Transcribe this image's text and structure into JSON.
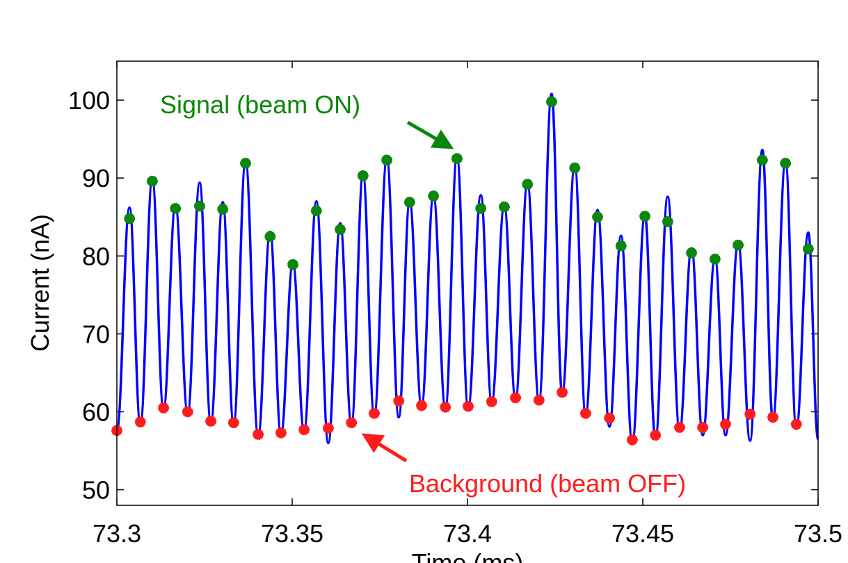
{
  "chart_data": {
    "type": "line",
    "xlabel": "Time (ms)",
    "ylabel": "Current (nA)",
    "xlim": [
      73.3,
      73.5
    ],
    "xticks": [
      73.3,
      73.35,
      73.4,
      73.45,
      73.5
    ],
    "ylim": [
      48,
      105
    ],
    "yticks": [
      50,
      60,
      70,
      80,
      90,
      100
    ],
    "series": [
      {
        "type": "line",
        "color": "#0000ff",
        "x": [
          73.3,
          73.3036,
          73.3067,
          73.3101,
          73.3133,
          73.3167,
          73.3202,
          73.3236,
          73.3268,
          73.3302,
          73.3333,
          73.3367,
          73.3403,
          73.3437,
          73.3468,
          73.3502,
          73.3534,
          73.3569,
          73.3603,
          73.3637,
          73.3669,
          73.3702,
          73.3734,
          73.377,
          73.3804,
          73.3835,
          73.3869,
          73.3903,
          73.3937,
          73.397,
          73.4002,
          73.4038,
          73.4069,
          73.4105,
          73.4137,
          73.4171,
          73.4204,
          73.424,
          73.427,
          73.4306,
          73.4337,
          73.4371,
          73.4405,
          73.4438,
          73.447,
          73.4506,
          73.4536,
          73.4571,
          73.4605,
          73.4639,
          73.4671,
          73.4706,
          73.4736,
          73.4772,
          73.4806,
          73.4841,
          73.4871,
          73.4907,
          73.4938,
          73.4972,
          73.5
        ],
        "values": [
          57.6,
          86.2,
          58.4,
          89.9,
          60.3,
          86.5,
          59.8,
          89.4,
          58.6,
          86.9,
          58.4,
          92.2,
          56.9,
          83.1,
          57.1,
          79.1,
          57.5,
          87.0,
          56.0,
          84.2,
          58.4,
          90.5,
          59.5,
          92.5,
          59.3,
          87.0,
          60.7,
          87.8,
          60.4,
          92.8,
          60.5,
          87.8,
          61.2,
          86.5,
          61.6,
          89.4,
          61.4,
          100.8,
          62.3,
          91.6,
          59.6,
          85.9,
          58.1,
          82.6,
          56.0,
          85.3,
          56.5,
          87.6,
          57.6,
          81.0,
          57.0,
          79.8,
          57.0,
          81.7,
          56.3,
          93.6,
          58.9,
          92.2,
          57.8,
          83.0,
          56.5
        ]
      },
      {
        "type": "scatter",
        "color": "#0c860c",
        "x": [
          73.3036,
          73.3101,
          73.3167,
          73.3236,
          73.3302,
          73.3367,
          73.3437,
          73.3502,
          73.3569,
          73.3637,
          73.3702,
          73.377,
          73.3835,
          73.3903,
          73.397,
          73.4038,
          73.4105,
          73.4171,
          73.424,
          73.4306,
          73.4371,
          73.4438,
          73.4506,
          73.4571,
          73.4639,
          73.4706,
          73.4772,
          73.4841,
          73.4907,
          73.4972
        ],
        "values": [
          84.8,
          89.6,
          86.1,
          86.4,
          86.0,
          91.9,
          82.5,
          78.9,
          85.8,
          83.4,
          90.3,
          92.3,
          86.9,
          87.7,
          92.5,
          86.1,
          86.3,
          89.2,
          99.8,
          91.3,
          85.0,
          81.3,
          85.1,
          84.4,
          80.4,
          79.6,
          81.4,
          92.3,
          91.9,
          80.9
        ]
      },
      {
        "type": "scatter",
        "color": "#ff1c1c",
        "x": [
          73.3,
          73.3067,
          73.3133,
          73.3202,
          73.3268,
          73.3333,
          73.3403,
          73.3468,
          73.3534,
          73.3603,
          73.3669,
          73.3734,
          73.3804,
          73.3869,
          73.3937,
          73.4002,
          73.4069,
          73.4137,
          73.4204,
          73.427,
          73.4337,
          73.4405,
          73.447,
          73.4536,
          73.4605,
          73.4671,
          73.4736,
          73.4806,
          73.4871,
          73.4938
        ],
        "values": [
          57.6,
          58.7,
          60.5,
          60.0,
          58.8,
          58.6,
          57.1,
          57.3,
          57.7,
          57.9,
          58.6,
          59.8,
          61.4,
          60.8,
          60.6,
          60.7,
          61.3,
          61.8,
          61.5,
          62.5,
          59.8,
          59.2,
          56.4,
          57.0,
          58.0,
          58.0,
          58.4,
          59.7,
          59.3,
          58.4
        ]
      }
    ],
    "annotations": [
      {
        "text": "Signal (beam ON)",
        "color": "#0c860c"
      },
      {
        "text": "Background (beam OFF)",
        "color": "#ff1c1c"
      }
    ]
  }
}
